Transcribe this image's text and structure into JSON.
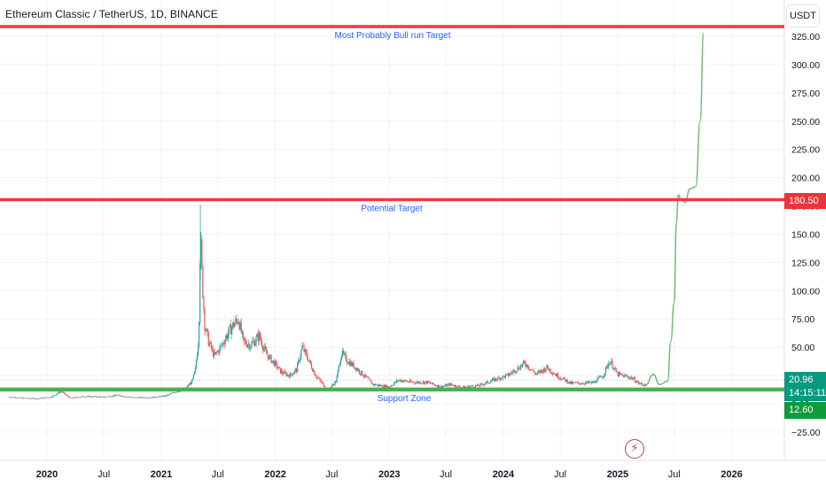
{
  "header": {
    "symbol_title": "Ethereum Classic / TetherUS, 1D, BINANCE",
    "currency_button": "USDT"
  },
  "colors": {
    "resistance_line": "#f23645",
    "support_line": "#4caf50",
    "projection_line": "#66bb6a",
    "candle_up": "#26a69a",
    "candle_down": "#ef5350",
    "annotation_text": "#2962ff",
    "price_tag": "#089981",
    "resistance_tag": "#e8353b",
    "support_tag": "#0e9b3a"
  },
  "price_tags": {
    "last_price": "20.96",
    "countdown": "14:15:11",
    "resistance_level": "180.50",
    "support_level": "12.60"
  },
  "chart_data": {
    "type": "line",
    "title": "Ethereum Classic / TetherUS, 1D, BINANCE",
    "xlabel": "",
    "ylabel": "",
    "x_range": [
      "2019-09",
      "2026-06"
    ],
    "ylim": [
      -40,
      330
    ],
    "y_ticks": [
      -25,
      0,
      25,
      50,
      75,
      100,
      125,
      150,
      175,
      200,
      225,
      250,
      275,
      300,
      325
    ],
    "x_tick_labels": [
      {
        "date": "2020-01-01",
        "label": "2020"
      },
      {
        "date": "2020-07-01",
        "label": "Jul"
      },
      {
        "date": "2021-01-01",
        "label": "2021"
      },
      {
        "date": "2021-07-01",
        "label": "Jul"
      },
      {
        "date": "2022-01-01",
        "label": "2022"
      },
      {
        "date": "2022-07-01",
        "label": "Jul"
      },
      {
        "date": "2023-01-01",
        "label": "2023"
      },
      {
        "date": "2023-07-01",
        "label": "Jul"
      },
      {
        "date": "2024-01-01",
        "label": "2024"
      },
      {
        "date": "2024-07-01",
        "label": "Jul"
      },
      {
        "date": "2025-01-01",
        "label": "2025"
      },
      {
        "date": "2025-07-01",
        "label": "Jul"
      },
      {
        "date": "2026-01-01",
        "label": "2026"
      }
    ],
    "grid": true,
    "series": [
      {
        "kind": "price",
        "points": [
          [
            "2019-09-01",
            6
          ],
          [
            "2019-10-15",
            5
          ],
          [
            "2019-12-01",
            4.5
          ],
          [
            "2020-01-15",
            6
          ],
          [
            "2020-02-15",
            11
          ],
          [
            "2020-03-15",
            5
          ],
          [
            "2020-05-01",
            6.5
          ],
          [
            "2020-07-01",
            6
          ],
          [
            "2020-08-15",
            7.5
          ],
          [
            "2020-10-01",
            5.5
          ],
          [
            "2020-12-01",
            5.5
          ],
          [
            "2021-01-15",
            7
          ],
          [
            "2021-02-20",
            11
          ],
          [
            "2021-03-15",
            12
          ],
          [
            "2021-04-10",
            20
          ],
          [
            "2021-04-20",
            30
          ],
          [
            "2021-05-01",
            60
          ],
          [
            "2021-05-06",
            150
          ],
          [
            "2021-05-12",
            110
          ],
          [
            "2021-05-20",
            70
          ],
          [
            "2021-06-01",
            55
          ],
          [
            "2021-06-20",
            42
          ],
          [
            "2021-07-10",
            50
          ],
          [
            "2021-07-25",
            58
          ],
          [
            "2021-08-15",
            68
          ],
          [
            "2021-09-05",
            75
          ],
          [
            "2021-09-20",
            55
          ],
          [
            "2021-10-15",
            52
          ],
          [
            "2021-11-10",
            60
          ],
          [
            "2021-12-01",
            45
          ],
          [
            "2021-12-31",
            35
          ],
          [
            "2022-01-20",
            28
          ],
          [
            "2022-02-15",
            25
          ],
          [
            "2022-03-10",
            30
          ],
          [
            "2022-03-28",
            50
          ],
          [
            "2022-04-15",
            40
          ],
          [
            "2022-05-10",
            25
          ],
          [
            "2022-06-18",
            12
          ],
          [
            "2022-07-15",
            20
          ],
          [
            "2022-07-31",
            45
          ],
          [
            "2022-08-20",
            38
          ],
          [
            "2022-09-15",
            32
          ],
          [
            "2022-10-15",
            24
          ],
          [
            "2022-11-10",
            17
          ],
          [
            "2022-12-31",
            15
          ],
          [
            "2023-01-31",
            21
          ],
          [
            "2023-03-15",
            19
          ],
          [
            "2023-05-01",
            19
          ],
          [
            "2023-06-15",
            15
          ],
          [
            "2023-07-15",
            17
          ],
          [
            "2023-08-20",
            14.5
          ],
          [
            "2023-10-15",
            16
          ],
          [
            "2023-12-10",
            22
          ],
          [
            "2024-01-15",
            25
          ],
          [
            "2024-03-10",
            36
          ],
          [
            "2024-04-15",
            26
          ],
          [
            "2024-05-20",
            32
          ],
          [
            "2024-06-20",
            25
          ],
          [
            "2024-08-05",
            18
          ],
          [
            "2024-10-15",
            18.5
          ],
          [
            "2024-11-15",
            25
          ],
          [
            "2024-12-07",
            38
          ],
          [
            "2024-12-31",
            26
          ],
          [
            "2025-02-15",
            23
          ],
          [
            "2025-03-10",
            18
          ],
          [
            "2025-03-31",
            16.5
          ]
        ]
      },
      {
        "kind": "projection",
        "points": [
          [
            "2025-03-31",
            16.5
          ],
          [
            "2025-04-25",
            26
          ],
          [
            "2025-05-15",
            17
          ],
          [
            "2025-06-10",
            20
          ],
          [
            "2025-06-20",
            55
          ],
          [
            "2025-07-01",
            90
          ],
          [
            "2025-07-08",
            160
          ],
          [
            "2025-07-14",
            185
          ],
          [
            "2025-07-24",
            180
          ],
          [
            "2025-08-05",
            178
          ],
          [
            "2025-08-20",
            190
          ],
          [
            "2025-09-08",
            192
          ],
          [
            "2025-09-22",
            250
          ],
          [
            "2025-10-03",
            328
          ]
        ]
      }
    ],
    "horizontal_levels": [
      {
        "value": 330,
        "role": "resistance",
        "label": "Most Probably Bull run Target"
      },
      {
        "value": 180.5,
        "role": "resistance",
        "label": "Potential Target"
      },
      {
        "value": 12.6,
        "role": "support",
        "label": "Support Zone"
      }
    ],
    "current_price": 20.96
  }
}
